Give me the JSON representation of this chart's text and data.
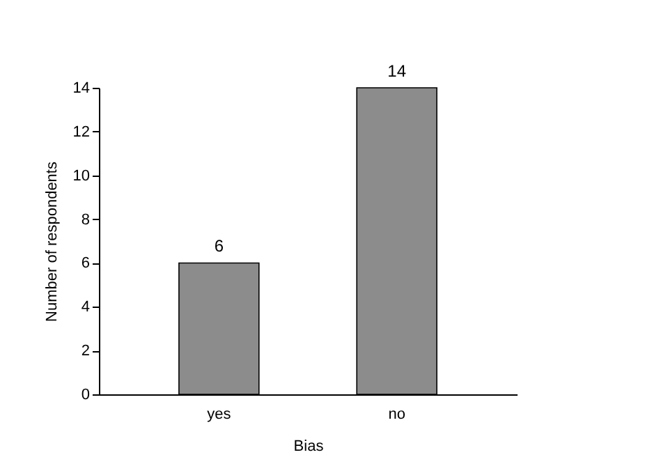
{
  "chart_data": {
    "type": "bar",
    "xlabel": "Bias",
    "ylabel": "Number of respondents",
    "categories": [
      "yes",
      "no"
    ],
    "values": [
      6,
      14
    ],
    "color": "#8c8c8c",
    "ylim": [
      0,
      14
    ],
    "yticks": [
      0,
      2,
      4,
      6,
      8,
      10,
      12,
      14
    ],
    "grid": false,
    "data_labels": true
  }
}
